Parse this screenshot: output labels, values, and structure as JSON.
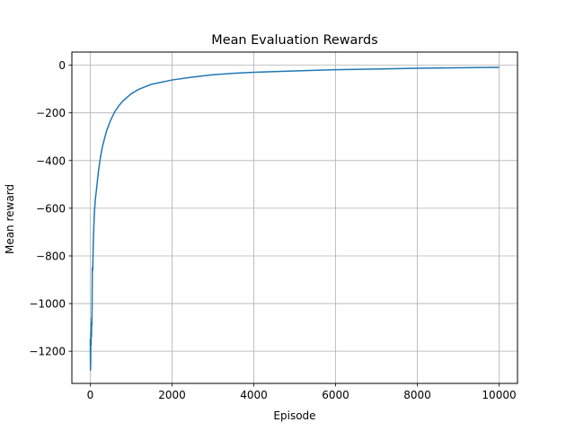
{
  "chart_data": {
    "type": "line",
    "title": "Mean Evaluation Rewards",
    "xlabel": "Episode",
    "ylabel": "Mean reward",
    "xlim": [
      -450,
      10450
    ],
    "ylim": [
      -1335,
      55
    ],
    "xticks": [
      0,
      2000,
      4000,
      6000,
      8000,
      10000
    ],
    "yticks": [
      -1200,
      -1000,
      -800,
      -600,
      -400,
      -200,
      0
    ],
    "xtick_labels": [
      "0",
      "2000",
      "4000",
      "6000",
      "8000",
      "10000"
    ],
    "ytick_labels": [
      "−1200",
      "−1000",
      "−800",
      "−600",
      "−400",
      "−200",
      "0"
    ],
    "grid": true,
    "legend": null,
    "series": [
      {
        "color": "#1f77b4",
        "x": [
          0,
          5,
          10,
          15,
          20,
          25,
          30,
          35,
          40,
          45,
          50,
          60,
          75,
          100,
          125,
          150,
          200,
          250,
          300,
          400,
          500,
          600,
          700,
          800,
          1000,
          1200,
          1500,
          2000,
          2500,
          3000,
          3500,
          4000,
          5000,
          6000,
          7000,
          8000,
          9000,
          10000
        ],
        "y": [
          -1150,
          -1280,
          -1240,
          -1120,
          -1175,
          -1080,
          -1140,
          -1060,
          -1090,
          -1000,
          -850,
          -860,
          -735,
          -620,
          -560,
          -525,
          -445,
          -385,
          -340,
          -275,
          -230,
          -195,
          -170,
          -150,
          -120,
          -100,
          -80,
          -62,
          -50,
          -40,
          -34,
          -30,
          -24,
          -19,
          -16,
          -13,
          -11,
          -9
        ]
      }
    ]
  }
}
